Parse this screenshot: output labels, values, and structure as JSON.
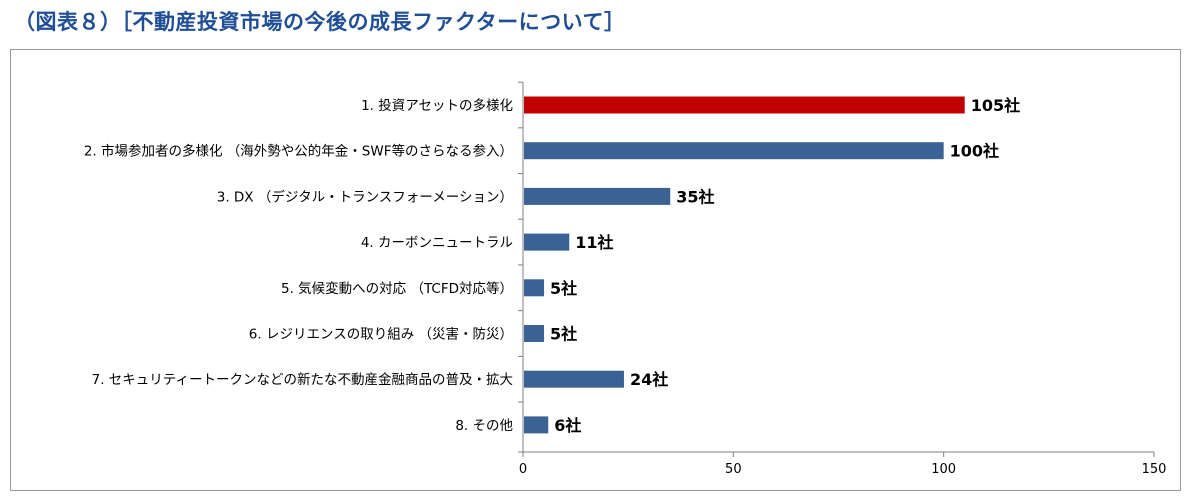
{
  "header": {
    "title": "（図表８）［不動産投資市場の今後の成長ファクターについて］"
  },
  "chart_data": {
    "type": "bar",
    "orientation": "horizontal",
    "categories": [
      "1. 投資アセットの多様化",
      "2. 市場参加者の多様化 （海外勢や公的年金・SWF等のさらなる参入）",
      "3. DX （デジタル・トランスフォーメーション）",
      "4. カーボンニュートラル",
      "5. 気候変動への対応 （TCFD対応等）",
      "6. レジリエンスの取り組み （災害・防災）",
      "7. セキュリティートークンなどの新たな不動産金融商品の普及・拡大",
      "8. その他"
    ],
    "values": [
      105,
      100,
      35,
      11,
      5,
      5,
      24,
      6
    ],
    "value_labels": [
      "105社",
      "100社",
      "35社",
      "11社",
      "5社",
      "5社",
      "24社",
      "6社"
    ],
    "highlight_index": 0,
    "xlim": [
      0,
      150
    ],
    "xticks": [
      0,
      50,
      100,
      150
    ],
    "xtick_labels": [
      "0",
      "50",
      "100",
      "150"
    ],
    "colors": {
      "highlight": "#c00000",
      "bar": "#3a6295",
      "title": "#1f4e96"
    },
    "grid": false,
    "legend": "none"
  }
}
